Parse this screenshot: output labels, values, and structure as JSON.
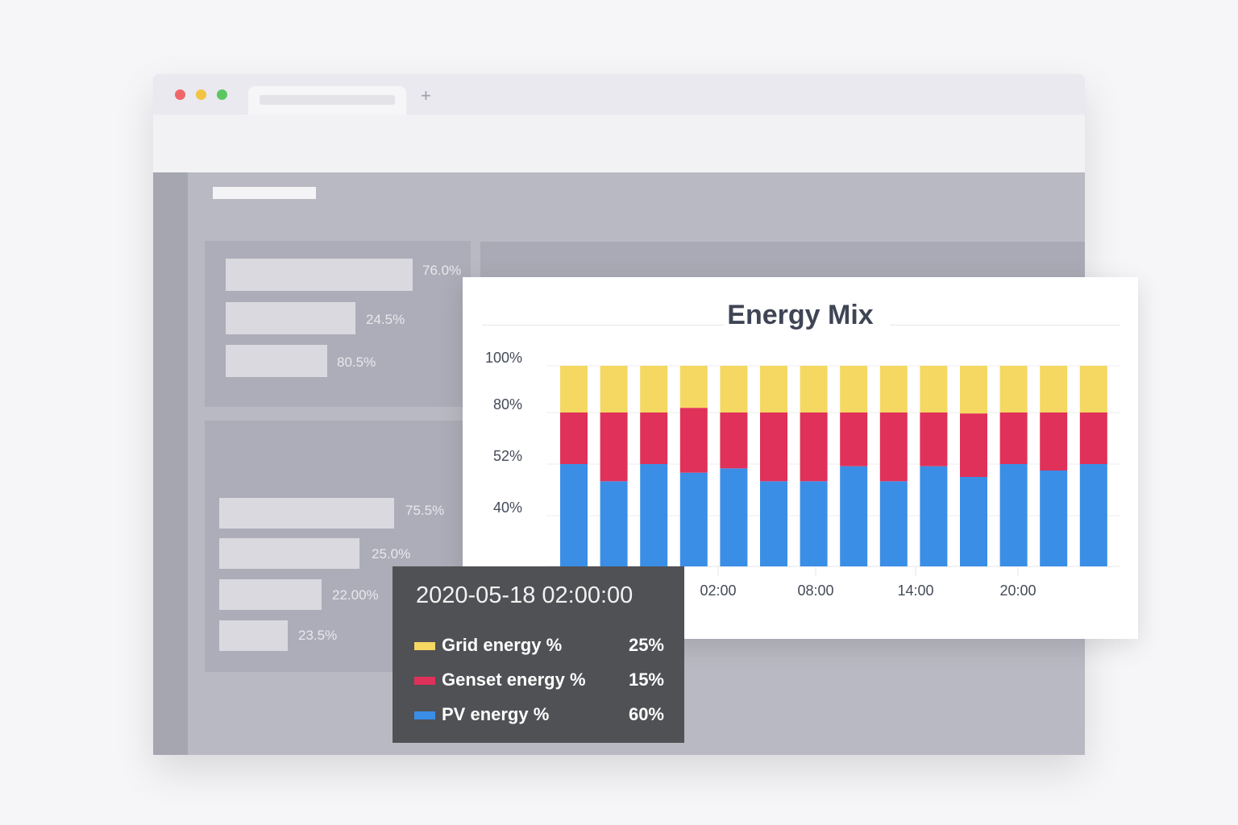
{
  "browser": {
    "new_tab_label": "+"
  },
  "background_panels": {
    "top_bars": [
      "76.0%",
      "24.5%",
      "80.5%"
    ],
    "bottom_bars": [
      "75.5%",
      "25.0%",
      "22.00%",
      "23.5%"
    ]
  },
  "colors": {
    "grid": "#F5D862",
    "genset": "#E0315A",
    "pv": "#3A8EE6",
    "tooltip_bg": "#505154"
  },
  "chart_data": {
    "type": "bar",
    "stacked": true,
    "title": "Energy Mix",
    "y_tick_labels": [
      "100%",
      "80%",
      "52%",
      "40%"
    ],
    "y_ticks": [
      100,
      80,
      52,
      40
    ],
    "x_tick_labels": [
      "02:00",
      "08:00",
      "14:00",
      "20:00"
    ],
    "grid": true,
    "series": [
      {
        "name": "PV energy %",
        "color": "#3A8EE6",
        "top_values": [
          52,
          48,
          52,
          50,
          51,
          48,
          48,
          51.5,
          48,
          51.5,
          49,
          52,
          50.5,
          52
        ]
      },
      {
        "name": "Genset energy %",
        "color": "#E0315A",
        "top_values": [
          80,
          80,
          80,
          82,
          80,
          80,
          80,
          80,
          80,
          80,
          79.5,
          80,
          80,
          80
        ]
      },
      {
        "name": "Grid energy %",
        "color": "#F5D862",
        "top_values": [
          100,
          100,
          100,
          100,
          100,
          100,
          100,
          100,
          100,
          100,
          100,
          100,
          100,
          100
        ]
      }
    ]
  },
  "tooltip": {
    "timestamp": "2020-05-18 02:00:00",
    "rows": [
      {
        "label": "Grid energy %",
        "value": "25%",
        "color": "#F5D862"
      },
      {
        "label": "Genset energy %",
        "value": "15%",
        "color": "#E0315A"
      },
      {
        "label": "PV energy %",
        "value": "60%",
        "color": "#3A8EE6"
      }
    ]
  }
}
